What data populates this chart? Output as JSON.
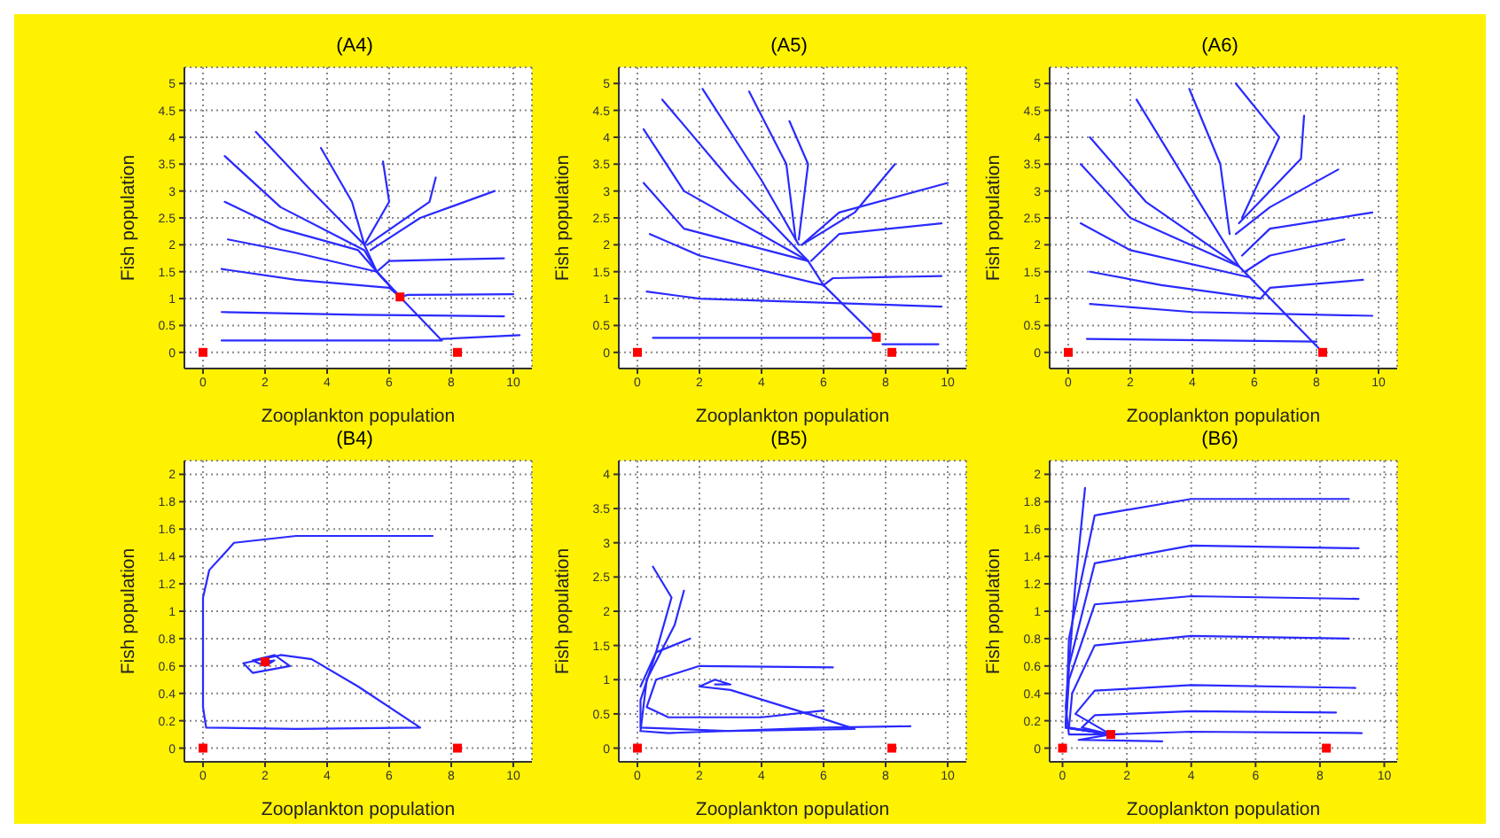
{
  "chart_data": [
    {
      "type": "line",
      "title": "(A4)",
      "xlabel": "Zooplankton population",
      "ylabel": "Fish population",
      "xlim": [
        -0.6,
        10.6
      ],
      "ylim": [
        -0.3,
        5.3
      ],
      "xticks": [
        0,
        2,
        4,
        6,
        8,
        10
      ],
      "yticks": [
        0,
        0.5,
        1,
        1.5,
        2,
        2.5,
        3,
        3.5,
        4,
        4.5,
        5
      ],
      "grid": true,
      "marker": "none",
      "series": [
        {
          "color": "#2a2aff",
          "x": [
            1.7,
            3.5,
            5.2,
            5.6,
            6.35
          ],
          "values": [
            4.1,
            3.0,
            2.0,
            1.5,
            1.03
          ]
        },
        {
          "color": "#2a2aff",
          "x": [
            0.7,
            2.5,
            5.2,
            5.6,
            6.35
          ],
          "values": [
            3.65,
            2.7,
            1.9,
            1.5,
            1.03
          ]
        },
        {
          "color": "#2a2aff",
          "x": [
            0.7,
            2.5,
            5.0,
            5.6,
            6.35
          ],
          "values": [
            2.8,
            2.3,
            1.9,
            1.5,
            1.03
          ]
        },
        {
          "color": "#2a2aff",
          "x": [
            0.8,
            3,
            5.6,
            6.35
          ],
          "values": [
            2.1,
            1.85,
            1.5,
            1.03
          ]
        },
        {
          "color": "#2a2aff",
          "x": [
            0.6,
            3,
            6,
            6.35
          ],
          "values": [
            1.55,
            1.35,
            1.2,
            1.03
          ]
        },
        {
          "color": "#2a2aff",
          "x": [
            0.6,
            5,
            9.7
          ],
          "values": [
            0.75,
            0.7,
            0.67
          ]
        },
        {
          "color": "#2a2aff",
          "x": [
            0.6,
            7.7,
            6.35
          ],
          "values": [
            0.22,
            0.22,
            1.03
          ]
        },
        {
          "color": "#2a2aff",
          "x": [
            10.2,
            7.7
          ],
          "values": [
            0.32,
            0.25
          ]
        },
        {
          "color": "#2a2aff",
          "x": [
            3.8,
            4.8,
            5.2
          ],
          "values": [
            3.8,
            2.8,
            2.0
          ]
        },
        {
          "color": "#2a2aff",
          "x": [
            5.8,
            6.0,
            5.2
          ],
          "values": [
            3.55,
            2.8,
            2.0
          ]
        },
        {
          "color": "#2a2aff",
          "x": [
            7.5,
            7.3,
            5.3
          ],
          "values": [
            3.25,
            2.8,
            2.0
          ]
        },
        {
          "color": "#2a2aff",
          "x": [
            9.4,
            7,
            5.4
          ],
          "values": [
            3.0,
            2.5,
            1.9
          ]
        },
        {
          "color": "#2a2aff",
          "x": [
            9.7,
            6,
            5.6
          ],
          "values": [
            1.75,
            1.7,
            1.5
          ]
        },
        {
          "color": "#2a2aff",
          "x": [
            10,
            6.6,
            6.35
          ],
          "values": [
            1.08,
            1.07,
            1.03
          ]
        },
        {
          "type": "scatter",
          "marker": "square",
          "color": "#ff0000",
          "x": [
            0,
            8.2,
            6.35
          ],
          "values": [
            0,
            0,
            1.03
          ]
        }
      ]
    },
    {
      "type": "line",
      "title": "(A5)",
      "xlabel": "Zooplankton population",
      "ylabel": "Fish population",
      "xlim": [
        -0.6,
        10.6
      ],
      "ylim": [
        -0.3,
        5.3
      ],
      "xticks": [
        0,
        2,
        4,
        6,
        8,
        10
      ],
      "yticks": [
        0,
        0.5,
        1,
        1.5,
        2,
        2.5,
        3,
        3.5,
        4,
        4.5,
        5
      ],
      "grid": true,
      "marker": "none",
      "series": [
        {
          "color": "#2a2aff",
          "x": [
            0.8,
            3,
            5.5,
            6,
            7.7
          ],
          "values": [
            4.7,
            3.2,
            1.7,
            1.25,
            0.28
          ]
        },
        {
          "color": "#2a2aff",
          "x": [
            2.1,
            4,
            5.2
          ],
          "values": [
            4.9,
            3.2,
            2.0
          ]
        },
        {
          "color": "#2a2aff",
          "x": [
            3.6,
            4.8,
            5.1
          ],
          "values": [
            4.85,
            3.5,
            2.1
          ]
        },
        {
          "color": "#2a2aff",
          "x": [
            4.9,
            5.5,
            5.2
          ],
          "values": [
            4.3,
            3.5,
            2.1
          ]
        },
        {
          "color": "#2a2aff",
          "x": [
            0.2,
            1.5,
            5.5
          ],
          "values": [
            4.15,
            3.0,
            1.7
          ]
        },
        {
          "color": "#2a2aff",
          "x": [
            0.2,
            1.5,
            5.5
          ],
          "values": [
            3.15,
            2.3,
            1.7
          ]
        },
        {
          "color": "#2a2aff",
          "x": [
            0.4,
            2,
            6
          ],
          "values": [
            2.2,
            1.8,
            1.25
          ]
        },
        {
          "color": "#2a2aff",
          "x": [
            0.3,
            2,
            9.8
          ],
          "values": [
            1.13,
            1.0,
            0.85
          ]
        },
        {
          "color": "#2a2aff",
          "x": [
            0.5,
            7.7
          ],
          "values": [
            0.27,
            0.27
          ]
        },
        {
          "color": "#2a2aff",
          "x": [
            9.7,
            7.9
          ],
          "values": [
            0.15,
            0.15
          ]
        },
        {
          "color": "#2a2aff",
          "x": [
            8.3,
            7,
            5.3
          ],
          "values": [
            3.5,
            2.6,
            2.0
          ]
        },
        {
          "color": "#2a2aff",
          "x": [
            10,
            6.5,
            5.3
          ],
          "values": [
            3.15,
            2.6,
            2.0
          ]
        },
        {
          "color": "#2a2aff",
          "x": [
            9.8,
            6.5,
            5.6
          ],
          "values": [
            2.4,
            2.2,
            1.7
          ]
        },
        {
          "color": "#2a2aff",
          "x": [
            9.8,
            6.3,
            6
          ],
          "values": [
            1.42,
            1.38,
            1.25
          ]
        },
        {
          "type": "scatter",
          "marker": "square",
          "color": "#ff0000",
          "x": [
            0,
            8.2,
            7.7
          ],
          "values": [
            0,
            0,
            0.28
          ]
        }
      ]
    },
    {
      "type": "line",
      "title": "(A6)",
      "xlabel": "Zooplankton population",
      "ylabel": "Fish population",
      "xlim": [
        -0.6,
        10.6
      ],
      "ylim": [
        -0.3,
        5.3
      ],
      "xticks": [
        0,
        2,
        4,
        6,
        8,
        10
      ],
      "yticks": [
        0,
        0.5,
        1,
        1.5,
        2,
        2.5,
        3,
        3.5,
        4,
        4.5,
        5
      ],
      "grid": true,
      "marker": "none",
      "series": [
        {
          "color": "#2a2aff",
          "x": [
            2.2,
            4,
            5.5,
            8.2
          ],
          "values": [
            4.7,
            3.0,
            1.6,
            0
          ]
        },
        {
          "color": "#2a2aff",
          "x": [
            3.9,
            4.9,
            5.2
          ],
          "values": [
            4.9,
            3.5,
            2.2
          ]
        },
        {
          "color": "#2a2aff",
          "x": [
            5.4,
            6.8,
            5.6
          ],
          "values": [
            5.0,
            4.0,
            2.5
          ]
        },
        {
          "color": "#2a2aff",
          "x": [
            7.6,
            7.5,
            5.5
          ],
          "values": [
            4.4,
            3.6,
            2.4
          ]
        },
        {
          "color": "#2a2aff",
          "x": [
            8.7,
            6.5,
            5.4
          ],
          "values": [
            3.4,
            2.7,
            2.2
          ]
        },
        {
          "color": "#2a2aff",
          "x": [
            0.7,
            2.5,
            5.5
          ],
          "values": [
            4.0,
            2.8,
            1.6
          ]
        },
        {
          "color": "#2a2aff",
          "x": [
            0.4,
            2,
            5.5
          ],
          "values": [
            3.5,
            2.5,
            1.6
          ]
        },
        {
          "color": "#2a2aff",
          "x": [
            0.4,
            2,
            5.8
          ],
          "values": [
            2.4,
            1.9,
            1.4
          ]
        },
        {
          "color": "#2a2aff",
          "x": [
            0.7,
            3,
            6.2
          ],
          "values": [
            1.5,
            1.25,
            1.0
          ]
        },
        {
          "color": "#2a2aff",
          "x": [
            0.7,
            4,
            9.8
          ],
          "values": [
            0.9,
            0.75,
            0.68
          ]
        },
        {
          "color": "#2a2aff",
          "x": [
            0.6,
            8
          ],
          "values": [
            0.25,
            0.2
          ]
        },
        {
          "color": "#2a2aff",
          "x": [
            9.8,
            6.5,
            5.6
          ],
          "values": [
            2.6,
            2.3,
            1.8
          ]
        },
        {
          "color": "#2a2aff",
          "x": [
            8.9,
            6.5,
            5.7
          ],
          "values": [
            2.1,
            1.8,
            1.5
          ]
        },
        {
          "color": "#2a2aff",
          "x": [
            9.5,
            6.5,
            6.2
          ],
          "values": [
            1.35,
            1.2,
            1.0
          ]
        },
        {
          "type": "scatter",
          "marker": "square",
          "color": "#ff0000",
          "x": [
            0,
            8.2
          ],
          "values": [
            0,
            0
          ]
        }
      ]
    },
    {
      "type": "line",
      "title": "(B4)",
      "xlabel": "Zooplankton population",
      "ylabel": "Fish population",
      "xlim": [
        -0.6,
        10.6
      ],
      "ylim": [
        -0.1,
        2.1
      ],
      "xticks": [
        0,
        2,
        4,
        6,
        8,
        10
      ],
      "yticks": [
        0,
        0.2,
        0.4,
        0.6,
        0.8,
        1,
        1.2,
        1.4,
        1.6,
        1.8,
        2
      ],
      "grid": true,
      "marker": "none",
      "series": [
        {
          "color": "#2a2aff",
          "x": [
            7.4,
            3,
            1,
            0.2,
            0,
            0,
            0.1,
            3,
            7,
            5,
            3.5,
            2.5,
            1.3,
            1.6,
            2.8,
            2.3,
            1.6,
            2,
            2.3,
            2
          ],
          "values": [
            1.55,
            1.55,
            1.5,
            1.3,
            1.1,
            0.3,
            0.15,
            0.14,
            0.15,
            0.45,
            0.65,
            0.68,
            0.62,
            0.55,
            0.6,
            0.68,
            0.64,
            0.6,
            0.64,
            0.63
          ]
        },
        {
          "type": "scatter",
          "marker": "square",
          "color": "#ff0000",
          "x": [
            0,
            8.2,
            2
          ],
          "values": [
            0,
            0,
            0.63
          ]
        }
      ]
    },
    {
      "type": "line",
      "title": "(B5)",
      "xlabel": "Zooplankton population",
      "ylabel": "Fish population",
      "xlim": [
        -0.6,
        10.6
      ],
      "ylim": [
        -0.2,
        4.2
      ],
      "xticks": [
        0,
        2,
        4,
        6,
        8,
        10
      ],
      "yticks": [
        0,
        0.5,
        1,
        1.5,
        2,
        2.5,
        3,
        3.5,
        4
      ],
      "grid": true,
      "marker": "none",
      "series": [
        {
          "color": "#2a2aff",
          "x": [
            0.5,
            1.1,
            0.6,
            0.1,
            0.1,
            3,
            7,
            5.5,
            3,
            2,
            2.5,
            3,
            2.5
          ],
          "values": [
            2.65,
            2.2,
            1.4,
            0.7,
            0.3,
            0.25,
            0.28,
            0.5,
            0.85,
            0.9,
            1.0,
            0.93,
            0.93
          ]
        },
        {
          "color": "#2a2aff",
          "x": [
            1.5,
            1.2,
            0.3,
            0.1
          ],
          "values": [
            2.3,
            1.8,
            1.0,
            0.25
          ]
        },
        {
          "color": "#2a2aff",
          "x": [
            1.7,
            0.6,
            0.1
          ],
          "values": [
            1.6,
            1.4,
            0.9
          ]
        },
        {
          "color": "#2a2aff",
          "x": [
            6.3,
            2,
            0.6,
            0.3,
            1,
            4,
            6
          ],
          "values": [
            1.18,
            1.2,
            1.0,
            0.6,
            0.45,
            0.45,
            0.55
          ]
        },
        {
          "color": "#2a2aff",
          "x": [
            8.8,
            6,
            1,
            0.1
          ],
          "values": [
            0.32,
            0.3,
            0.22,
            0.25
          ]
        },
        {
          "type": "scatter",
          "marker": "square",
          "color": "#ff0000",
          "x": [
            0,
            8.2
          ],
          "values": [
            0,
            0
          ]
        }
      ]
    },
    {
      "type": "line",
      "title": "(B6)",
      "xlabel": "Zooplankton population",
      "ylabel": "Fish population",
      "xlim": [
        -0.4,
        10.4
      ],
      "ylim": [
        -0.1,
        2.1
      ],
      "xticks": [
        0,
        2,
        4,
        6,
        8,
        10
      ],
      "yticks": [
        0,
        0.2,
        0.4,
        0.6,
        0.8,
        1,
        1.2,
        1.4,
        1.6,
        1.8,
        2
      ],
      "grid": true,
      "marker": "none",
      "series": [
        {
          "color": "#2a2aff",
          "x": [
            8.9,
            4,
            1,
            0.2,
            0.1,
            1.5
          ],
          "values": [
            1.82,
            1.82,
            1.7,
            0.8,
            0.15,
            0.1
          ]
        },
        {
          "color": "#2a2aff",
          "x": [
            9.2,
            4,
            1,
            0.2,
            0.1,
            1.5
          ],
          "values": [
            1.46,
            1.48,
            1.35,
            0.6,
            0.15,
            0.1
          ]
        },
        {
          "color": "#2a2aff",
          "x": [
            9.2,
            4,
            1,
            0.2,
            0.1,
            1.5
          ],
          "values": [
            1.09,
            1.11,
            1.05,
            0.5,
            0.15,
            0.1
          ]
        },
        {
          "color": "#2a2aff",
          "x": [
            8.9,
            4,
            1,
            0.3,
            0.2,
            1.5
          ],
          "values": [
            0.8,
            0.82,
            0.75,
            0.4,
            0.15,
            0.1
          ]
        },
        {
          "color": "#2a2aff",
          "x": [
            9.1,
            4,
            1,
            0.4,
            1.5
          ],
          "values": [
            0.44,
            0.46,
            0.42,
            0.25,
            0.1
          ]
        },
        {
          "color": "#2a2aff",
          "x": [
            8.5,
            4,
            1,
            0.6,
            1.5
          ],
          "values": [
            0.26,
            0.27,
            0.24,
            0.15,
            0.1
          ]
        },
        {
          "color": "#2a2aff",
          "x": [
            9.3,
            4,
            1.5
          ],
          "values": [
            0.11,
            0.12,
            0.1
          ]
        },
        {
          "color": "#2a2aff",
          "x": [
            0.7,
            0.4,
            0.1,
            0.2,
            1.5
          ],
          "values": [
            1.9,
            1.2,
            0.3,
            0.1,
            0.1
          ]
        },
        {
          "color": "#2a2aff",
          "x": [
            3.1,
            0.5,
            1.5
          ],
          "values": [
            0.05,
            0.06,
            0.1
          ]
        },
        {
          "type": "scatter",
          "marker": "square",
          "color": "#ff0000",
          "x": [
            0,
            8.2,
            1.5
          ],
          "values": [
            0,
            0,
            0.1
          ]
        }
      ]
    }
  ]
}
